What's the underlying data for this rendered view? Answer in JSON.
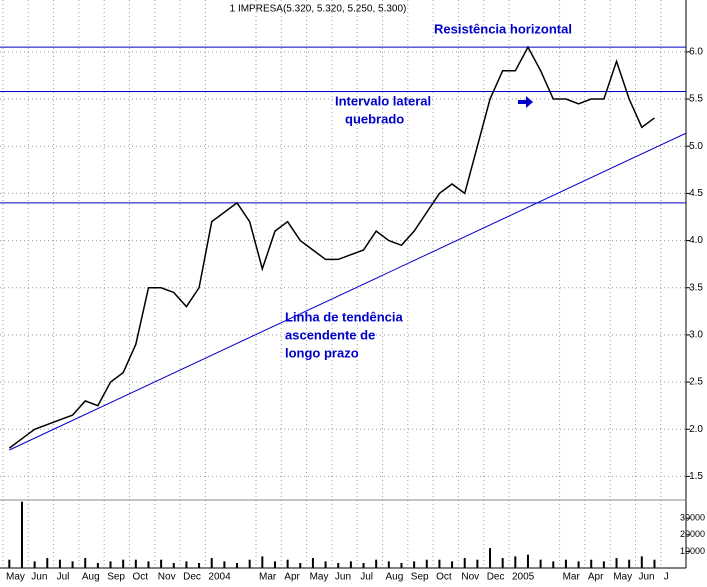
{
  "chart_data": [
    {
      "type": "line",
      "title": "1 IMPRESA(5.320, 5.320, 5.250, 5.300)",
      "categories": [
        "May",
        null,
        "Jun",
        null,
        "Jul",
        null,
        "Aug",
        null,
        "Sep",
        null,
        "Oct",
        null,
        "Nov",
        null,
        "Dec",
        null,
        "2004",
        null,
        null,
        null,
        "Mar",
        null,
        "Apr",
        null,
        "May",
        null,
        "Jun",
        null,
        "Jul",
        null,
        "Aug",
        null,
        "Sep",
        null,
        "Oct",
        null,
        "Nov",
        null,
        "Dec",
        null,
        "2005",
        null,
        null,
        null,
        "Mar",
        null,
        "Apr",
        null,
        "May",
        null,
        "Jun",
        null,
        "J"
      ],
      "values": [
        1.8,
        1.9,
        2.0,
        2.05,
        2.1,
        2.15,
        2.3,
        2.25,
        2.5,
        2.6,
        2.9,
        3.5,
        3.5,
        3.45,
        3.3,
        3.5,
        4.2,
        4.3,
        4.4,
        4.2,
        3.7,
        4.1,
        4.2,
        4.0,
        3.9,
        3.8,
        3.8,
        3.85,
        3.9,
        4.1,
        4.0,
        3.95,
        4.1,
        4.3,
        4.5,
        4.6,
        4.5,
        5.0,
        5.5,
        5.8,
        5.8,
        6.05,
        5.8,
        5.5,
        5.5,
        5.45,
        5.5,
        5.5,
        5.9,
        5.5,
        5.2,
        5.3,
        null
      ],
      "color": "#000000",
      "ylim": [
        1.25,
        6.55
      ],
      "yticks": [
        {
          "value": 1.5,
          "label": "1.5"
        },
        {
          "value": 2,
          "label": "2.0"
        },
        {
          "value": 2.5,
          "label": "2.5"
        },
        {
          "value": 3,
          "label": "3.0"
        },
        {
          "value": 3.5,
          "label": "3.5"
        },
        {
          "value": 4,
          "label": "4.0"
        },
        {
          "value": 4.5,
          "label": "4.5"
        },
        {
          "value": 5,
          "label": "5.0"
        },
        {
          "value": 5.5,
          "label": "5.5"
        },
        {
          "value": 6,
          "label": "6.0"
        }
      ],
      "grid": true,
      "line_color": "#0000cc",
      "levels": [
        6.05,
        5.58,
        4.4
      ],
      "trendline": {
        "x": [
          0,
          54
        ],
        "y": [
          1.78,
          5.17
        ]
      },
      "annotations": [
        "Resistência horizontal",
        "Intervalo lateral",
        "quebrado",
        "Linha de tendência",
        "ascendente de",
        "longo prazo"
      ]
    },
    {
      "type": "bar",
      "values": [
        5000,
        40000,
        4000,
        6000,
        5000,
        4000,
        6000,
        3000,
        4000,
        5000,
        5000,
        4000,
        5000,
        3000,
        4000,
        3000,
        6000,
        4000,
        3000,
        5000,
        7000,
        4000,
        5000,
        3000,
        6000,
        4000,
        3000,
        4000,
        3000,
        5000,
        4000,
        3000,
        4000,
        5000,
        5000,
        4000,
        6000,
        5000,
        12000,
        6000,
        7000,
        8000,
        5000,
        4000,
        5000,
        4000,
        5000,
        4000,
        6000,
        5000,
        7000,
        5000,
        null
      ],
      "color": "#000000",
      "ylim": [
        0,
        41000
      ],
      "yticks": [
        10000,
        20000,
        30000
      ]
    }
  ]
}
